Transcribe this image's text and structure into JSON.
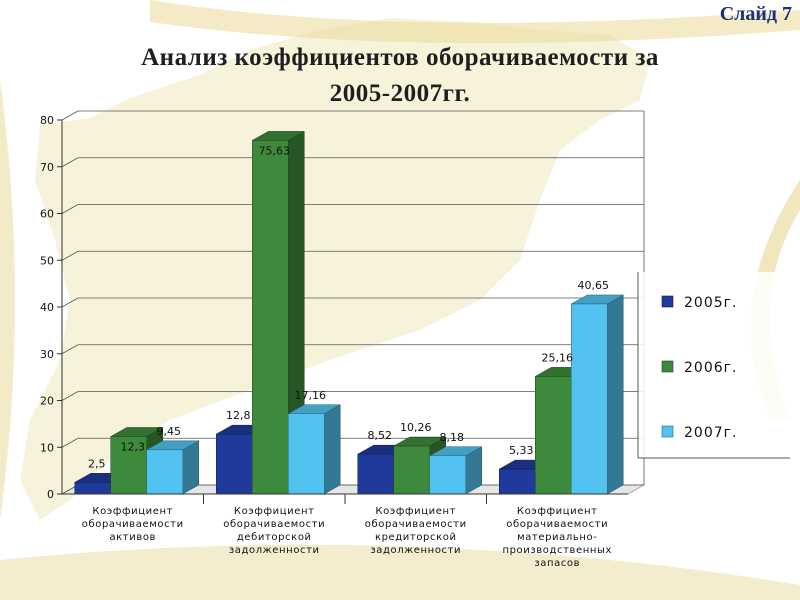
{
  "slide": {
    "number_label": "Слайд 7",
    "title_line1": "Анализ коэффициентов оборачиваемости за",
    "title_line2": "2005-2007гг."
  },
  "colors": {
    "series": [
      "#1f3a9a",
      "#3e8a3c",
      "#52c3f0"
    ],
    "background_map": "#f3efcf",
    "accent_stripe": "#d6c36e"
  },
  "chart_data": {
    "type": "bar",
    "categories": [
      "Коэффициент оборачиваемости активов",
      "Коэффициент оборачиваемости дебиторской задолженности",
      "Коэффициент оборачиваемости кредиторской задолженности",
      "Коэффициент оборачиваемости материально-производственных запасов"
    ],
    "category_label_lines": [
      [
        "Коэффициент",
        "оборачиваемости",
        "активов"
      ],
      [
        "Коэффициент",
        "оборачиваемости",
        "дебиторской",
        "задолженности"
      ],
      [
        "Коэффициент",
        "оборачиваемости",
        "кредиторской",
        "задолженности"
      ],
      [
        "Коэффициент",
        "оборачиваемости",
        "материально-",
        "производственных",
        "запасов"
      ]
    ],
    "series": [
      {
        "name": "2005г.",
        "values": [
          2.5,
          12.8,
          8.52,
          5.33
        ],
        "labels": [
          "2,5",
          "12,8",
          "8,52",
          "5,33"
        ]
      },
      {
        "name": "2006г.",
        "values": [
          12.3,
          75.63,
          10.26,
          25.16
        ],
        "labels": [
          "12,3",
          "75,63",
          "10,26",
          "25,16"
        ]
      },
      {
        "name": "2007г.",
        "values": [
          9.45,
          17.16,
          8.18,
          40.65
        ],
        "labels": [
          "9,45",
          "17,16",
          "8,18",
          "40,65"
        ]
      }
    ],
    "ylim": [
      0,
      80
    ],
    "yticks": [
      0,
      10,
      20,
      30,
      40,
      50,
      60,
      70,
      80
    ],
    "grid": true,
    "legend_position": "right",
    "three_d": true
  }
}
